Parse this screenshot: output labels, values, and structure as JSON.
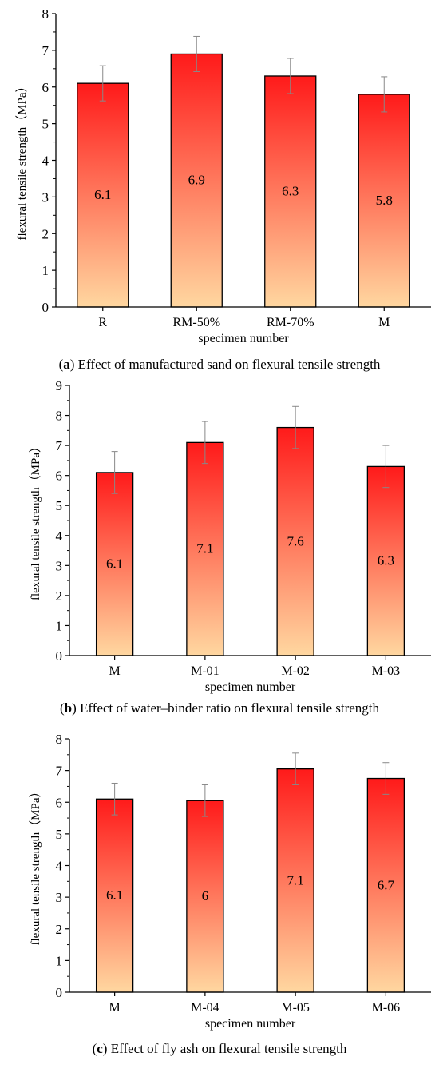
{
  "panels": [
    {
      "caption_letter": "a",
      "caption_text": " Effect of manufactured sand on flexural tensile strength",
      "chart_data": {
        "type": "bar",
        "categories": [
          "R",
          "RM-50%",
          "RM-70%",
          "M"
        ],
        "values": [
          6.1,
          6.9,
          6.3,
          5.8
        ],
        "value_labels": [
          "6.1",
          "6.9",
          "6.3",
          "5.8"
        ],
        "error": [
          0.48,
          0.48,
          0.48,
          0.48
        ],
        "xlabel": "specimen number",
        "ylabel": "flexural tensile strength（MPa）",
        "ylim": [
          0,
          8
        ],
        "yticks": [
          0,
          1,
          2,
          3,
          4,
          5,
          6,
          7,
          8
        ],
        "grid": false,
        "colors": {
          "top": "#ff1a1a",
          "bottom": "#ffd7a0",
          "error": "#888888"
        }
      }
    },
    {
      "caption_letter": "b",
      "caption_text": " Effect of water–binder ratio on flexural tensile strength",
      "chart_data": {
        "type": "bar",
        "categories": [
          "M",
          "M-01",
          "M-02",
          "M-03"
        ],
        "values": [
          6.1,
          7.1,
          7.6,
          6.3
        ],
        "value_labels": [
          "6.1",
          "7.1",
          "7.6",
          "6.3"
        ],
        "error": [
          0.7,
          0.7,
          0.7,
          0.7
        ],
        "xlabel": "specimen number",
        "ylabel": "flexural tensile strength（MPa）",
        "ylim": [
          0,
          9
        ],
        "yticks": [
          0,
          1,
          2,
          3,
          4,
          5,
          6,
          7,
          8,
          9
        ],
        "grid": false,
        "colors": {
          "top": "#ff1a1a",
          "bottom": "#ffd7a0",
          "error": "#888888"
        }
      }
    },
    {
      "caption_letter": "c",
      "caption_text": " Effect of fly ash on flexural tensile strength",
      "chart_data": {
        "type": "bar",
        "categories": [
          "M",
          "M-04",
          "M-05",
          "M-06"
        ],
        "values": [
          6.1,
          6.05,
          7.05,
          6.75
        ],
        "value_labels": [
          "6.1",
          "6",
          "7.1",
          "6.7"
        ],
        "error": [
          0.5,
          0.5,
          0.5,
          0.5
        ],
        "xlabel": "specimen number",
        "ylabel": "flexural tensile strength（MPa）",
        "ylim": [
          0,
          8
        ],
        "yticks": [
          0,
          1,
          2,
          3,
          4,
          5,
          6,
          7,
          8
        ],
        "grid": false,
        "colors": {
          "top": "#ff1a1a",
          "bottom": "#ffd7a0",
          "error": "#888888"
        }
      }
    }
  ]
}
